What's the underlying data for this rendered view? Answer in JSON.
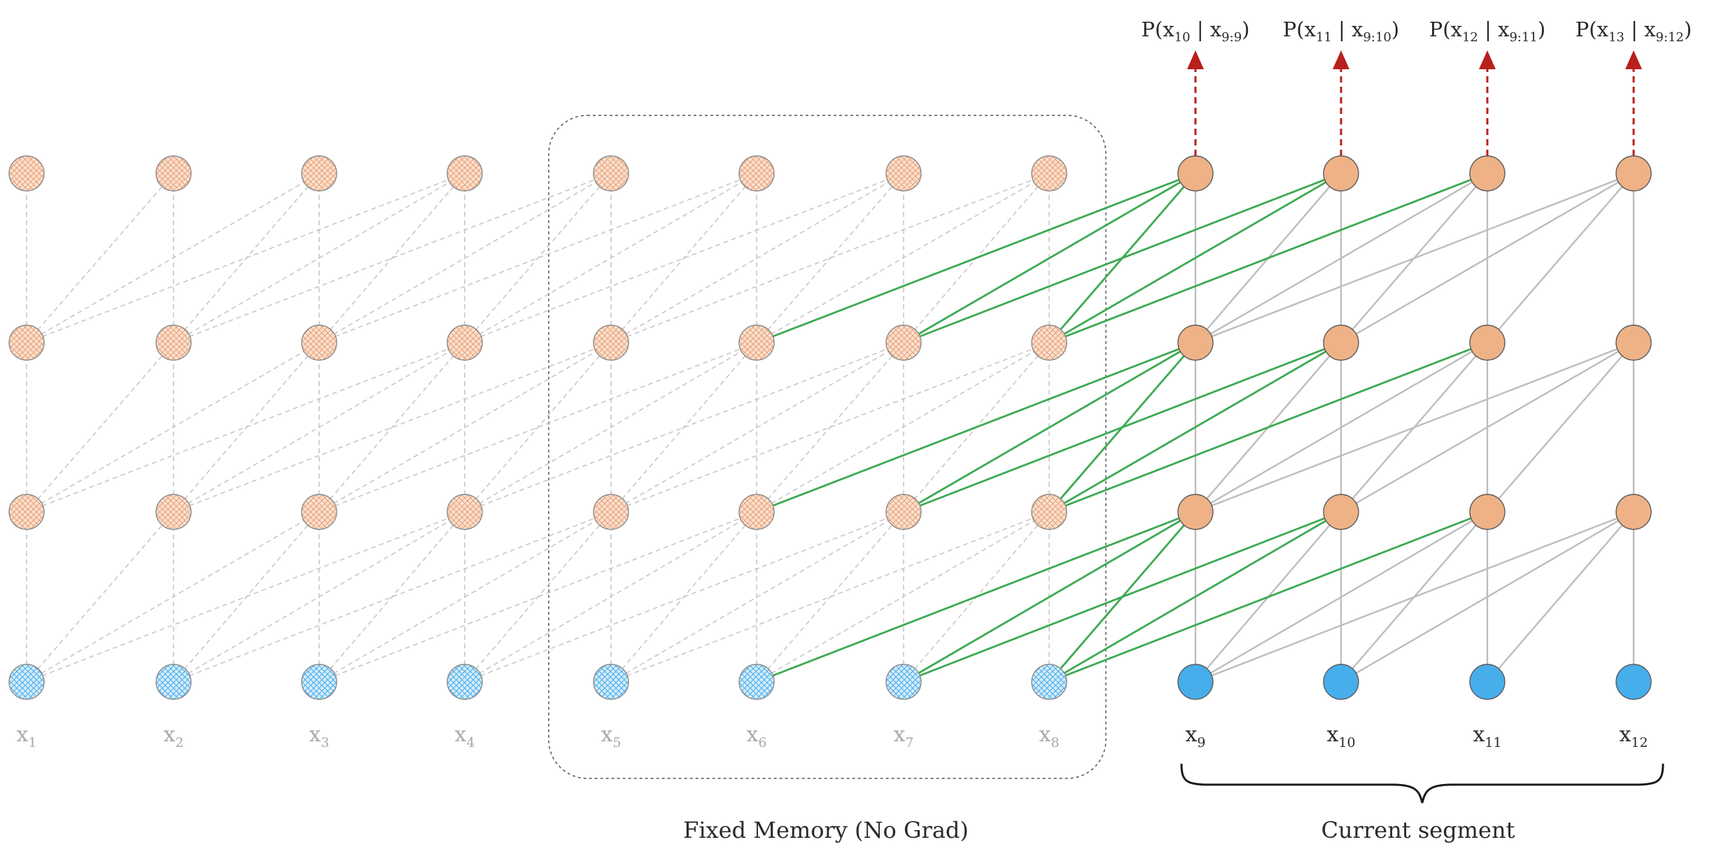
{
  "diagram": {
    "past_positions": [
      "1",
      "2",
      "3",
      "4",
      "5",
      "6",
      "7",
      "8"
    ],
    "current_positions": [
      "9",
      "10",
      "11",
      "12"
    ],
    "x_symbol": "x",
    "probabilities": [
      {
        "target": "10",
        "context": "9:9"
      },
      {
        "target": "11",
        "context": "9:10"
      },
      {
        "target": "12",
        "context": "9:11"
      },
      {
        "target": "13",
        "context": "9:12"
      }
    ],
    "memory_caption": "Fixed Memory (No Grad)",
    "segment_caption": "Current segment",
    "colors": {
      "hidden_node": "#eeb286",
      "input_node": "#47aeec",
      "past_hidden_fill": "#fbe1cf",
      "past_input_fill": "#d5ecfa",
      "green_edge": "#3caa52",
      "gray_edge": "#bdbdbd",
      "output_arrow": "#b8201d"
    }
  }
}
